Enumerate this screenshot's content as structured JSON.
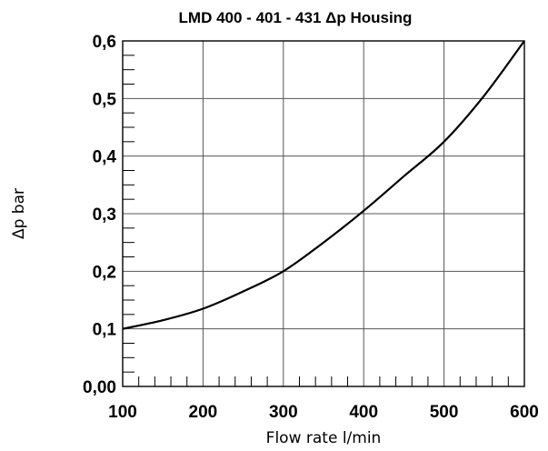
{
  "chart_data": {
    "type": "line",
    "title": "LMD 400 - 401 - 431 Δp Housing",
    "xlabel": "Flow rate l/min",
    "ylabel": "Δp bar",
    "xlim": [
      100,
      600
    ],
    "ylim": [
      0,
      0.6
    ],
    "x_ticks": [
      100,
      200,
      300,
      400,
      500,
      600
    ],
    "x_tick_labels": [
      "100",
      "200",
      "300",
      "400",
      "500",
      "600"
    ],
    "y_ticks": [
      0,
      0.1,
      0.2,
      0.3,
      0.4,
      0.5,
      0.6
    ],
    "y_tick_labels": [
      "0,00",
      "0,1",
      "0,2",
      "0,3",
      "0,4",
      "0,5",
      "0,6"
    ],
    "grid": true,
    "series": [
      {
        "x": [
          100,
          150,
          200,
          250,
          300,
          350,
          400,
          450,
          500,
          550,
          600
        ],
        "y": [
          0.1,
          0.115,
          0.135,
          0.165,
          0.2,
          0.25,
          0.305,
          0.365,
          0.425,
          0.505,
          0.6
        ]
      }
    ]
  }
}
